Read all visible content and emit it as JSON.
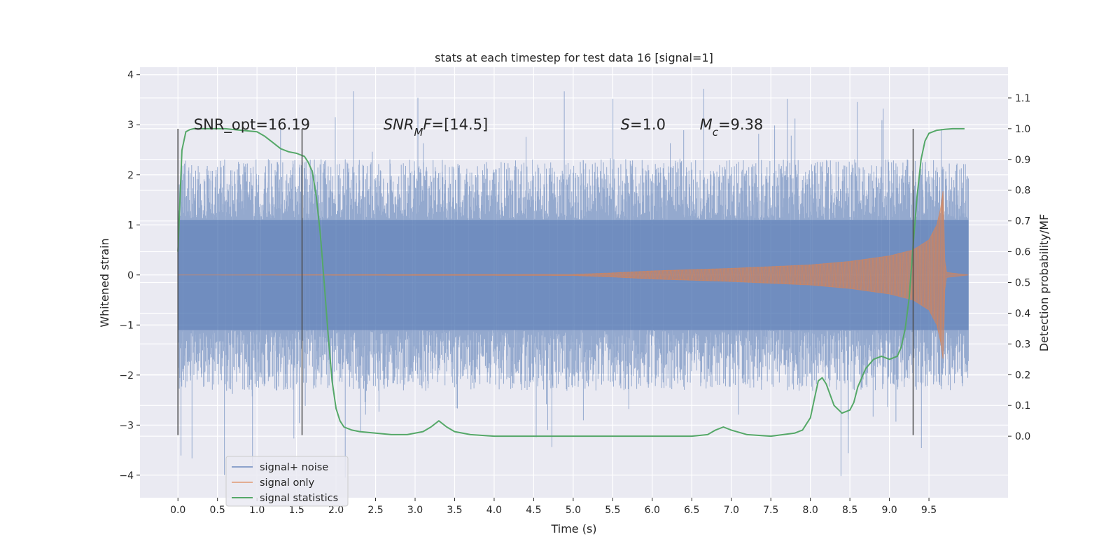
{
  "chart_data": {
    "type": "line",
    "title": "stats at each timestep for test data 16 [signal=1]",
    "xlabel": "Time (s)",
    "ylabel_left": "Whitened strain",
    "ylabel_right": "Detection probability/MF",
    "xlim": [
      -0.48,
      10.5
    ],
    "ylim_left": [
      -4.45,
      4.15
    ],
    "ylim_right": [
      -0.2,
      1.2
    ],
    "x_ticks": [
      0.0,
      0.5,
      1.0,
      1.5,
      2.0,
      2.5,
      3.0,
      3.5,
      4.0,
      4.5,
      5.0,
      5.5,
      6.0,
      6.5,
      7.0,
      7.5,
      8.0,
      8.5,
      9.0,
      9.5
    ],
    "x_tick_labels": [
      "0.0",
      "0.5",
      "1.0",
      "1.5",
      "2.0",
      "2.5",
      "3.0",
      "3.5",
      "4.0",
      "4.5",
      "5.0",
      "5.5",
      "6.0",
      "6.5",
      "7.0",
      "7.5",
      "8.0",
      "8.5",
      "9.0",
      "9.5"
    ],
    "y_left_ticks": [
      4,
      3,
      2,
      1,
      0,
      -1,
      -2,
      -3,
      -4
    ],
    "y_left_tick_labels": [
      "4",
      "3",
      "2",
      "1",
      "0",
      "−1",
      "−2",
      "−3",
      "−4"
    ],
    "y_right_ticks": [
      1.1,
      1.0,
      0.9,
      0.8,
      0.7,
      0.6,
      0.5,
      0.4,
      0.3,
      0.2,
      0.1,
      0.0
    ],
    "y_right_tick_labels": [
      "1.1",
      "1.0",
      "0.9",
      "0.8",
      "0.7",
      "0.6",
      "0.5",
      "0.4",
      "0.3",
      "0.2",
      "0.1",
      "0.0"
    ],
    "grid": true,
    "legend_position": "lower-left",
    "annotations": [
      {
        "parts": [
          {
            "text": "SNR_opt=16.19",
            "italic": false
          }
        ],
        "x": 0.2,
        "y": 3.0
      },
      {
        "parts": [
          {
            "text": "SNR",
            "italic": true
          },
          {
            "text": "M",
            "italic": true,
            "sub": true
          },
          {
            "text": "F",
            "italic": true
          },
          {
            "text": "=[14.5]",
            "italic": false
          }
        ],
        "x": 2.6,
        "y": 3.0
      },
      {
        "parts": [
          {
            "text": "S",
            "italic": true
          },
          {
            "text": "=1.0",
            "italic": false
          }
        ],
        "x": 5.6,
        "y": 3.0
      },
      {
        "parts": [
          {
            "text": "M",
            "italic": true
          },
          {
            "text": "c",
            "italic": true,
            "sub": true
          },
          {
            "text": "=9.38",
            "italic": false
          }
        ],
        "x": 6.6,
        "y": 3.0
      }
    ],
    "vlines": [
      {
        "x": 0.0,
        "ymin": -3.2,
        "ymax": 2.92
      },
      {
        "x": 1.57,
        "ymin": -3.2,
        "ymax": 2.92
      },
      {
        "x": 9.3,
        "ymin": -3.2,
        "ymax": 2.92
      }
    ],
    "series": [
      {
        "name": "signal+ noise",
        "axis": "left",
        "color": "#4c72b0",
        "kind": "noise",
        "x_range": [
          0.0,
          10.0
        ],
        "core_band": [
          -1.1,
          1.1
        ],
        "typical_extent": [
          -2.0,
          2.0
        ],
        "extreme_extent": [
          -4.05,
          3.78
        ]
      },
      {
        "name": "signal only",
        "axis": "left",
        "color": "#dd8452",
        "kind": "chirp",
        "x_range": [
          0.0,
          10.0
        ],
        "envelope": {
          "t": [
            0.0,
            5.0,
            5.5,
            6.0,
            7.0,
            8.0,
            8.5,
            9.0,
            9.3,
            9.5,
            9.6,
            9.65,
            9.68,
            9.7,
            9.72,
            10.0
          ],
          "amp": [
            0.0,
            0.01,
            0.04,
            0.08,
            0.13,
            0.2,
            0.27,
            0.38,
            0.5,
            0.7,
            1.0,
            1.35,
            1.7,
            0.3,
            0.05,
            0.0
          ]
        }
      },
      {
        "name": "signal statistics",
        "axis": "right",
        "color": "#55a868",
        "kind": "line",
        "x": [
          0.0,
          0.05,
          0.1,
          0.15,
          0.2,
          0.3,
          0.4,
          0.6,
          0.8,
          1.0,
          1.1,
          1.2,
          1.3,
          1.4,
          1.5,
          1.6,
          1.65,
          1.7,
          1.75,
          1.8,
          1.85,
          1.9,
          1.95,
          2.0,
          2.05,
          2.1,
          2.2,
          2.3,
          2.5,
          2.7,
          2.9,
          3.1,
          3.2,
          3.3,
          3.4,
          3.5,
          3.7,
          4.0,
          4.5,
          5.0,
          5.5,
          6.0,
          6.5,
          6.7,
          6.8,
          6.9,
          7.0,
          7.2,
          7.5,
          7.8,
          7.9,
          8.0,
          8.05,
          8.1,
          8.15,
          8.2,
          8.3,
          8.4,
          8.5,
          8.55,
          8.6,
          8.7,
          8.8,
          8.9,
          9.0,
          9.1,
          9.15,
          9.2,
          9.25,
          9.3,
          9.35,
          9.4,
          9.45,
          9.5,
          9.6,
          9.7,
          9.8,
          9.95
        ],
        "values": [
          0.6,
          0.93,
          0.99,
          0.997,
          1.0,
          1.0,
          1.0,
          1.0,
          0.995,
          0.99,
          0.975,
          0.955,
          0.935,
          0.925,
          0.92,
          0.91,
          0.89,
          0.86,
          0.78,
          0.66,
          0.5,
          0.33,
          0.18,
          0.09,
          0.05,
          0.03,
          0.02,
          0.015,
          0.01,
          0.005,
          0.005,
          0.015,
          0.03,
          0.05,
          0.03,
          0.015,
          0.005,
          0.0,
          0.0,
          0.0,
          0.0,
          0.0,
          0.0,
          0.005,
          0.02,
          0.03,
          0.02,
          0.005,
          0.0,
          0.01,
          0.02,
          0.06,
          0.12,
          0.18,
          0.19,
          0.17,
          0.1,
          0.075,
          0.085,
          0.11,
          0.16,
          0.22,
          0.25,
          0.26,
          0.25,
          0.26,
          0.29,
          0.35,
          0.45,
          0.62,
          0.78,
          0.9,
          0.96,
          0.985,
          0.995,
          0.998,
          1.0,
          1.0
        ]
      }
    ]
  }
}
